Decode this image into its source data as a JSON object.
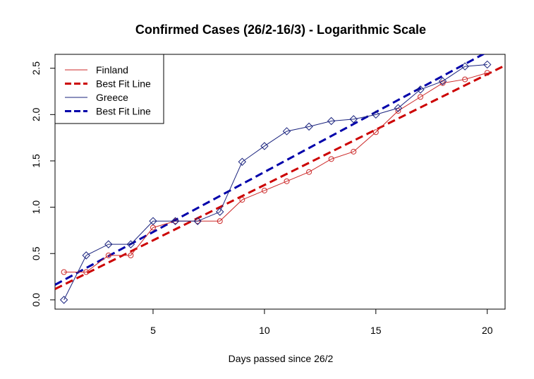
{
  "chart_data": {
    "type": "line",
    "title": "Confirmed Cases (26/2-16/3) - Logarithmic Scale",
    "xlabel": "Days passed since 26/2",
    "ylabel": "",
    "xlim": [
      0.6,
      20.8
    ],
    "ylim": [
      -0.1,
      2.65
    ],
    "x_ticks": [
      5,
      10,
      15,
      20
    ],
    "y_ticks": [
      0.0,
      0.5,
      1.0,
      1.5,
      2.0,
      2.5
    ],
    "x_tick_labels": [
      "5",
      "10",
      "15",
      "20"
    ],
    "y_tick_labels": [
      "0.0",
      "0.5",
      "1.0",
      "1.5",
      "2.0",
      "2.5"
    ],
    "grid": false,
    "legend_position": "top-left",
    "x": [
      1,
      2,
      3,
      4,
      5,
      6,
      7,
      8,
      9,
      10,
      11,
      12,
      13,
      14,
      15,
      16,
      17,
      18,
      19,
      20
    ],
    "series": [
      {
        "name": "Finland",
        "color": "#cc2a2a",
        "marker": "circle",
        "values": [
          0.3,
          0.3,
          0.48,
          0.48,
          0.78,
          0.85,
          0.85,
          0.85,
          1.08,
          1.18,
          1.28,
          1.38,
          1.52,
          1.6,
          1.81,
          2.04,
          2.19,
          2.34,
          2.38,
          2.45
        ]
      },
      {
        "name": "Greece",
        "color": "#1a237e",
        "marker": "diamond",
        "values": [
          0.0,
          0.48,
          0.6,
          0.6,
          0.85,
          0.85,
          0.85,
          0.95,
          1.49,
          1.66,
          1.82,
          1.87,
          1.93,
          1.95,
          2.0,
          2.07,
          2.27,
          2.36,
          2.52,
          2.54
        ]
      }
    ],
    "fit_lines": [
      {
        "name": "Best Fit Line",
        "color": "#cc0000",
        "intercept": 0.045,
        "slope": 0.1195
      },
      {
        "name": "Best Fit Line",
        "color": "#0000aa",
        "intercept": 0.085,
        "slope": 0.1295
      }
    ],
    "legend": [
      {
        "label": "Finland",
        "color": "#cc2a2a",
        "style": "solid"
      },
      {
        "label": "Best Fit Line",
        "color": "#cc0000",
        "style": "dashed"
      },
      {
        "label": "Greece",
        "color": "#1a237e",
        "style": "solid"
      },
      {
        "label": "Best Fit Line",
        "color": "#0000aa",
        "style": "dashed"
      }
    ]
  }
}
